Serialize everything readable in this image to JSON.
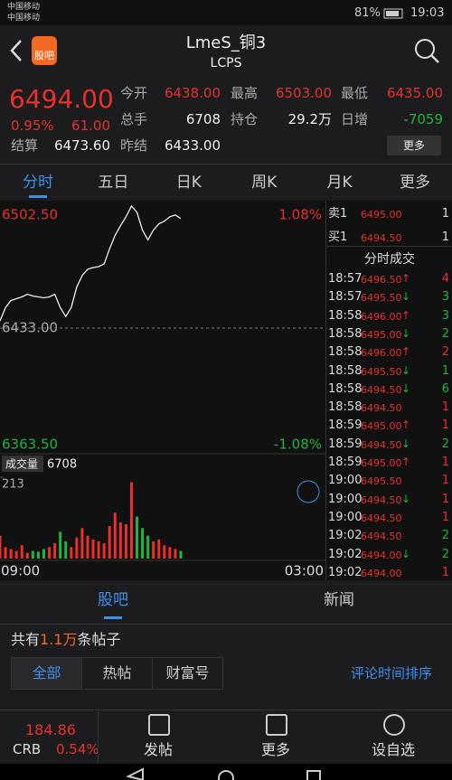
{
  "status_bar": {
    "carrier_1": "中国移动",
    "carrier_2": "中国移动",
    "battery": "81%",
    "time": "19:03"
  },
  "header": {
    "app_icon": "股吧",
    "title": "LmeS_铜3",
    "subtitle": "LCPS"
  },
  "quote": {
    "price": "6494.00",
    "change_pct": "0.95%",
    "change": "61.00",
    "settle_label": "结算",
    "settle": "6473.60",
    "fields": [
      {
        "label": "今开",
        "value": "6438.00",
        "tone": "up"
      },
      {
        "label": "最高",
        "value": "6503.00",
        "tone": "up"
      },
      {
        "label": "最低",
        "value": "6435.00",
        "tone": "up"
      },
      {
        "label": "总手",
        "value": "6708",
        "tone": "flat"
      },
      {
        "label": "持仓",
        "value": "29.2万",
        "tone": "flat"
      },
      {
        "label": "日增",
        "value": "-7059",
        "tone": "down"
      },
      {
        "label": "昨结",
        "value": "6433.00",
        "tone": "flat"
      }
    ],
    "more": "更多"
  },
  "tabs": {
    "items": [
      "分时",
      "五日",
      "日K",
      "周K",
      "月K",
      "更多"
    ],
    "selected": 0
  },
  "chart": {
    "type": "line",
    "ylim": [
      6363.5,
      6502.5
    ],
    "yticks": [
      {
        "value": 6502.5,
        "label": "6502.50"
      },
      {
        "value": 6433,
        "label": "6433.00"
      },
      {
        "value": 6363.5,
        "label": "6363.50"
      }
    ],
    "pct_labels": [
      "1.08%",
      "-1.08%"
    ],
    "prices": [
      6437,
      6444.5,
      6448.5,
      6449.5,
      6450.5,
      6452,
      6451,
      6450.5,
      6450,
      6450.5,
      6452,
      6444.5,
      6439.5,
      6444.5,
      6456,
      6462.5,
      6466,
      6467,
      6467.5,
      6469,
      6477.5,
      6485,
      6490.5,
      6495.5,
      6501.5,
      6498,
      6488,
      6482.5,
      6488,
      6491.5,
      6493,
      6495.5,
      6496.5,
      6494.5
    ],
    "volume_label": "成交量",
    "volume_total": "6708",
    "volume_ylim": [
      0,
      213
    ],
    "volume_yticks": [
      213
    ],
    "volumes": [
      60,
      30,
      25,
      20,
      35,
      15,
      20,
      18,
      25,
      30,
      40,
      70,
      45,
      30,
      55,
      80,
      60,
      50,
      45,
      40,
      85,
      120,
      95,
      90,
      200,
      110,
      80,
      60,
      45,
      50,
      35,
      30,
      25,
      20
    ],
    "x_labels": [
      "09:00",
      "03:00"
    ]
  },
  "order_book": [
    {
      "side": "卖1",
      "price": "6495.00",
      "volume": "1"
    },
    {
      "side": "买1",
      "price": "6494.50",
      "volume": "1"
    }
  ],
  "trades_title": "分时成交",
  "trades": [
    {
      "time": "18:57",
      "price": "6496.50",
      "arrow": "↑",
      "volume": "4",
      "tone": "up"
    },
    {
      "time": "18:57",
      "price": "6495.50",
      "arrow": "↓",
      "volume": "3",
      "tone": "down"
    },
    {
      "time": "18:58",
      "price": "6496.00",
      "arrow": "↑",
      "volume": "3",
      "tone": "down"
    },
    {
      "time": "18:58",
      "price": "6495.00",
      "arrow": "↓",
      "volume": "2",
      "tone": "down"
    },
    {
      "time": "18:58",
      "price": "6496.00",
      "arrow": "↑",
      "volume": "2",
      "tone": "up"
    },
    {
      "time": "18:58",
      "price": "6495.50",
      "arrow": "↓",
      "volume": "1",
      "tone": "down"
    },
    {
      "time": "18:58",
      "price": "6494.50",
      "arrow": "↓",
      "volume": "6",
      "tone": "down"
    },
    {
      "time": "18:58",
      "price": "6494.50",
      "volume": "1",
      "tone": "up"
    },
    {
      "time": "18:59",
      "price": "6495.00",
      "arrow": "↑",
      "volume": "1",
      "tone": "up"
    },
    {
      "time": "18:59",
      "price": "6494.50",
      "arrow": "↓",
      "volume": "2",
      "tone": "down"
    },
    {
      "time": "18:59",
      "price": "6495.00",
      "arrow": "↑",
      "volume": "1",
      "tone": "up"
    },
    {
      "time": "19:00",
      "price": "6495.50",
      "volume": "1",
      "tone": "up"
    },
    {
      "time": "19:00",
      "price": "6494.50",
      "arrow": "↓",
      "volume": "1",
      "tone": "up"
    },
    {
      "time": "19:00",
      "price": "6494.50",
      "volume": "1",
      "tone": "up"
    },
    {
      "time": "19:02",
      "price": "6494.50",
      "volume": "2",
      "tone": "down"
    },
    {
      "time": "19:02",
      "price": "6494.00",
      "arrow": "↓",
      "volume": "2",
      "tone": "down"
    },
    {
      "time": "19:02",
      "price": "6494.00",
      "volume": "1",
      "tone": "up"
    }
  ],
  "section_tabs": {
    "items": [
      "股吧",
      "新闻"
    ],
    "selected": 0
  },
  "posts": {
    "prefix": "共有",
    "count": "1.1万",
    "suffix": "条帖子",
    "filters": [
      "全部",
      "热帖",
      "财富号"
    ],
    "selected": 0,
    "sort": "评论时间排序"
  },
  "bottom_bar": {
    "index_value": "184.86",
    "index_name": "CRB",
    "index_change": "0.54%",
    "post": "发帖",
    "more": "更多",
    "watch": "设自选"
  }
}
